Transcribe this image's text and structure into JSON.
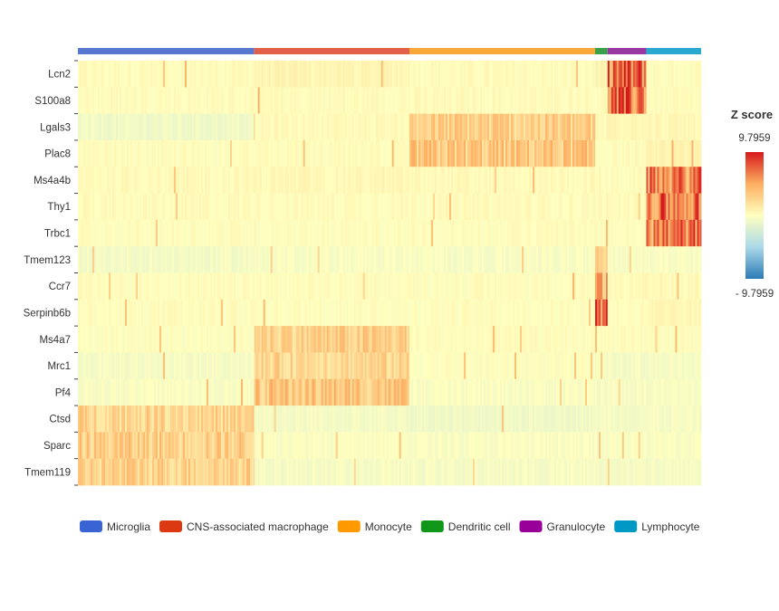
{
  "chart_data": {
    "type": "heatmap",
    "title": "",
    "xlabel": "",
    "ylabel": "",
    "genes": [
      "Lcn2",
      "S100a8",
      "Lgals3",
      "Plac8",
      "Ms4a4b",
      "Thy1",
      "Trbc1",
      "Tmem123",
      "Ccr7",
      "Serpinb6b",
      "Ms4a7",
      "Mrc1",
      "Pf4",
      "Ctsd",
      "Sparc",
      "Tmem119"
    ],
    "cell_types": [
      {
        "name": "Microglia",
        "color": "#5878d0",
        "legend_color": "#3a63d4",
        "fraction": 0.283
      },
      {
        "name": "CNS-associated macrophage",
        "color": "#e0604a",
        "legend_color": "#dc3912",
        "fraction": 0.249
      },
      {
        "name": "Monocyte",
        "color": "#f8a838",
        "legend_color": "#ff9900",
        "fraction": 0.298
      },
      {
        "name": "Dendritic cell",
        "color": "#38a048",
        "legend_color": "#109618",
        "fraction": 0.02
      },
      {
        "name": "Granulocyte",
        "color": "#9838a0",
        "legend_color": "#990099",
        "fraction": 0.062
      },
      {
        "name": "Lymphocyte",
        "color": "#2aa8d0",
        "legend_color": "#0099c6",
        "fraction": 0.088
      }
    ],
    "mean_z_by_cell_type": [
      [
        0.2,
        0.6,
        0.2,
        0.6,
        8.5,
        0.1
      ],
      [
        0.2,
        0.2,
        0.2,
        0.2,
        8.5,
        0.1
      ],
      [
        -0.8,
        0.3,
        3.5,
        0.3,
        0.6,
        0.4
      ],
      [
        0.1,
        0.1,
        4.0,
        0.1,
        0.1,
        0.6
      ],
      [
        0.3,
        0.4,
        0.3,
        0.2,
        0.1,
        7.5
      ],
      [
        0.2,
        0.2,
        0.2,
        0.2,
        0.2,
        8.0
      ],
      [
        0.1,
        0.1,
        0.1,
        0.1,
        0.1,
        7.8
      ],
      [
        -0.6,
        -0.3,
        -0.4,
        4.0,
        -0.3,
        -0.3
      ],
      [
        0.1,
        0.1,
        0.1,
        6.5,
        0.2,
        0.3
      ],
      [
        0.1,
        0.1,
        0.1,
        9.8,
        0.1,
        0.4
      ],
      [
        0.0,
        3.5,
        0.1,
        0.1,
        0.0,
        0.0
      ],
      [
        -0.5,
        3.0,
        0.0,
        -0.3,
        -0.5,
        -0.5
      ],
      [
        -0.3,
        4.2,
        -0.3,
        -0.4,
        -0.4,
        -0.4
      ],
      [
        3.2,
        -0.6,
        -0.8,
        -0.5,
        -0.5,
        -0.5
      ],
      [
        3.6,
        -0.2,
        -0.3,
        -0.3,
        -0.3,
        -0.3
      ],
      [
        3.4,
        -0.5,
        -0.5,
        -0.5,
        -0.5,
        -0.5
      ]
    ],
    "colorbar": {
      "title": "Z score",
      "max_label": "9.7959",
      "min_label": "- 9.7959",
      "zmin": -9.7959,
      "zmax": 9.7959,
      "colors": [
        "#2c7bb6",
        "#abd9e9",
        "#ffffbf",
        "#fdae61",
        "#d7191c"
      ]
    },
    "legend_position": "bottom"
  }
}
